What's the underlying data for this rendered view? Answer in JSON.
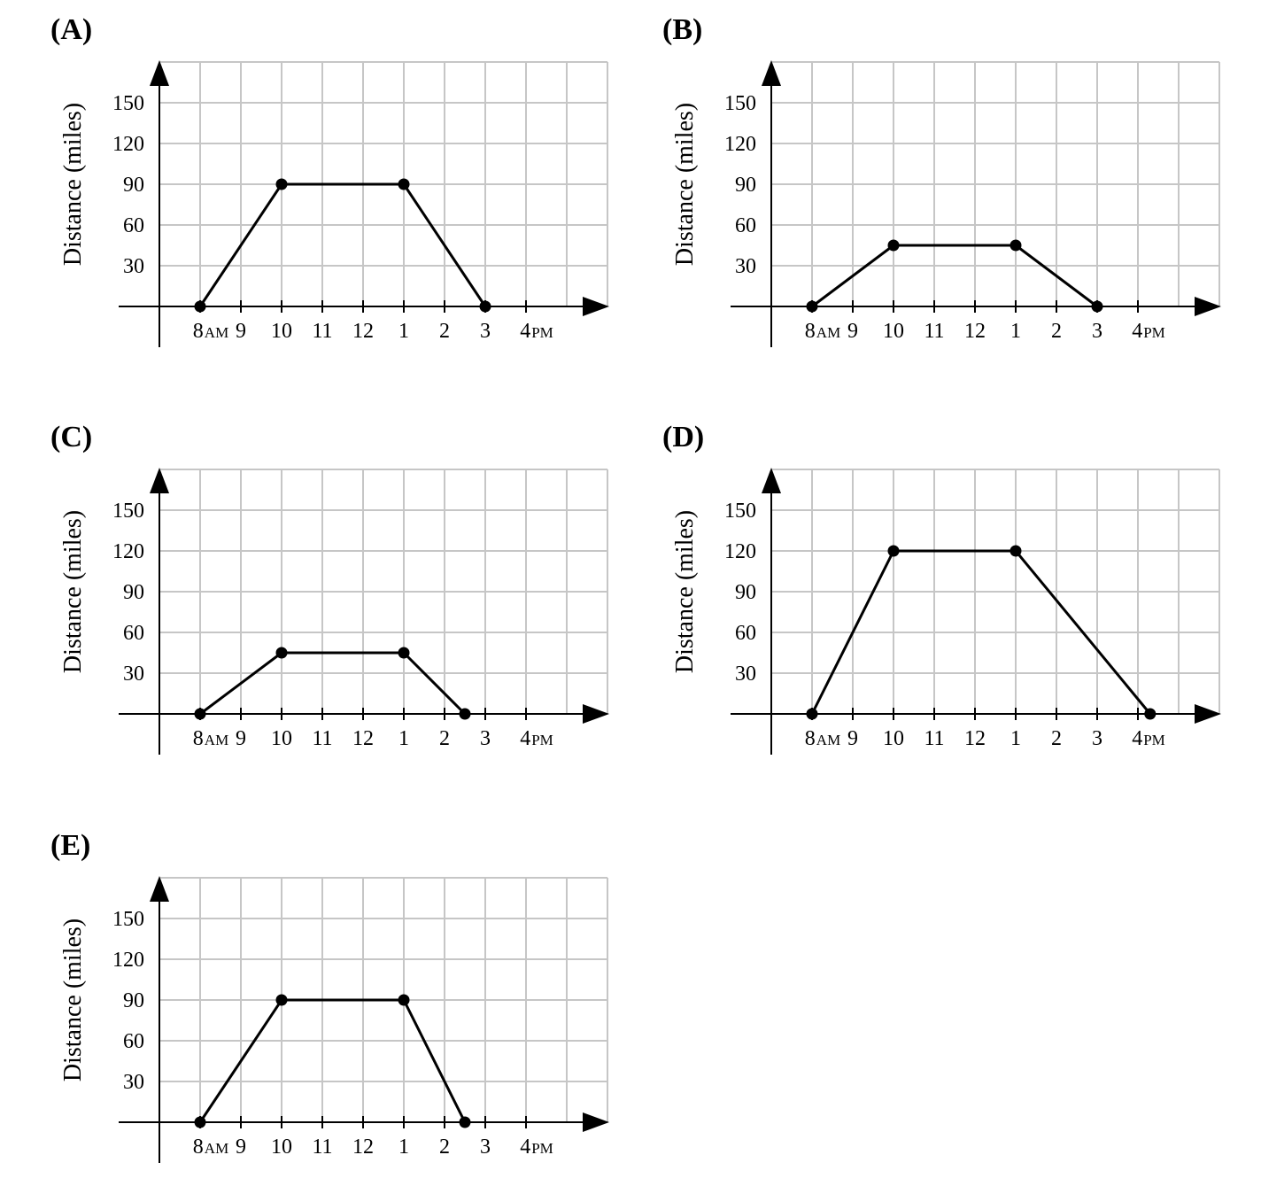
{
  "chart_data": [
    {
      "type": "line",
      "panel_label": "(A)",
      "ylabel": "Distance (miles)",
      "y_ticks": [
        "30",
        "60",
        "90",
        "120",
        "150"
      ],
      "x_ticks": [
        {
          "main": "8",
          "suffix": "AM"
        },
        {
          "main": "9",
          "suffix": ""
        },
        {
          "main": "10",
          "suffix": ""
        },
        {
          "main": "11",
          "suffix": ""
        },
        {
          "main": "12",
          "suffix": ""
        },
        {
          "main": "1",
          "suffix": ""
        },
        {
          "main": "2",
          "suffix": ""
        },
        {
          "main": "3",
          "suffix": ""
        },
        {
          "main": "4",
          "suffix": "PM"
        }
      ],
      "x_hours_since_8am": [
        0,
        2,
        5,
        7
      ],
      "y": [
        0,
        90,
        90,
        0
      ],
      "ylim": [
        0,
        180
      ],
      "grid": true
    },
    {
      "type": "line",
      "panel_label": "(B)",
      "ylabel": "Distance (miles)",
      "y_ticks": [
        "30",
        "60",
        "90",
        "120",
        "150"
      ],
      "x_ticks": [
        {
          "main": "8",
          "suffix": "AM"
        },
        {
          "main": "9",
          "suffix": ""
        },
        {
          "main": "10",
          "suffix": ""
        },
        {
          "main": "11",
          "suffix": ""
        },
        {
          "main": "12",
          "suffix": ""
        },
        {
          "main": "1",
          "suffix": ""
        },
        {
          "main": "2",
          "suffix": ""
        },
        {
          "main": "3",
          "suffix": ""
        },
        {
          "main": "4",
          "suffix": "PM"
        }
      ],
      "x_hours_since_8am": [
        0,
        2,
        5,
        7
      ],
      "y": [
        0,
        45,
        45,
        0
      ],
      "ylim": [
        0,
        180
      ],
      "grid": true
    },
    {
      "type": "line",
      "panel_label": "(C)",
      "ylabel": "Distance (miles)",
      "y_ticks": [
        "30",
        "60",
        "90",
        "120",
        "150"
      ],
      "x_ticks": [
        {
          "main": "8",
          "suffix": "AM"
        },
        {
          "main": "9",
          "suffix": ""
        },
        {
          "main": "10",
          "suffix": ""
        },
        {
          "main": "11",
          "suffix": ""
        },
        {
          "main": "12",
          "suffix": ""
        },
        {
          "main": "1",
          "suffix": ""
        },
        {
          "main": "2",
          "suffix": ""
        },
        {
          "main": "3",
          "suffix": ""
        },
        {
          "main": "4",
          "suffix": "PM"
        }
      ],
      "x_hours_since_8am": [
        0,
        2,
        5,
        6.5
      ],
      "y": [
        0,
        45,
        45,
        0
      ],
      "ylim": [
        0,
        180
      ],
      "grid": true
    },
    {
      "type": "line",
      "panel_label": "(D)",
      "ylabel": "Distance (miles)",
      "y_ticks": [
        "30",
        "60",
        "90",
        "120",
        "150"
      ],
      "x_ticks": [
        {
          "main": "8",
          "suffix": "AM"
        },
        {
          "main": "9",
          "suffix": ""
        },
        {
          "main": "10",
          "suffix": ""
        },
        {
          "main": "11",
          "suffix": ""
        },
        {
          "main": "12",
          "suffix": ""
        },
        {
          "main": "1",
          "suffix": ""
        },
        {
          "main": "2",
          "suffix": ""
        },
        {
          "main": "3",
          "suffix": ""
        },
        {
          "main": "4",
          "suffix": "PM"
        }
      ],
      "x_hours_since_8am": [
        0,
        2,
        5,
        8.3
      ],
      "y": [
        0,
        120,
        120,
        0
      ],
      "ylim": [
        0,
        180
      ],
      "grid": true
    },
    {
      "type": "line",
      "panel_label": "(E)",
      "ylabel": "Distance (miles)",
      "y_ticks": [
        "30",
        "60",
        "90",
        "120",
        "150"
      ],
      "x_ticks": [
        {
          "main": "8",
          "suffix": "AM"
        },
        {
          "main": "9",
          "suffix": ""
        },
        {
          "main": "10",
          "suffix": ""
        },
        {
          "main": "11",
          "suffix": ""
        },
        {
          "main": "12",
          "suffix": ""
        },
        {
          "main": "1",
          "suffix": ""
        },
        {
          "main": "2",
          "suffix": ""
        },
        {
          "main": "3",
          "suffix": ""
        },
        {
          "main": "4",
          "suffix": "PM"
        }
      ],
      "x_hours_since_8am": [
        0,
        2,
        5,
        6.5
      ],
      "y": [
        0,
        90,
        90,
        0
      ],
      "ylim": [
        0,
        180
      ],
      "grid": true
    }
  ]
}
